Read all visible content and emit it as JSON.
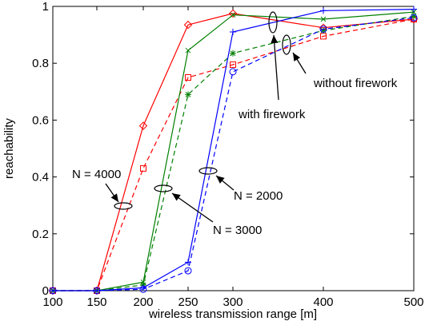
{
  "chart_data": {
    "type": "line",
    "xlabel": "wireless transmission range [m]",
    "ylabel": "reachability",
    "xlim": [
      100,
      500
    ],
    "ylim": [
      0,
      1
    ],
    "x_ticks": [
      "100",
      "150",
      "200",
      "250",
      "300",
      "400",
      "500"
    ],
    "y_ticks": [
      "0",
      "0.2",
      "0.4",
      "0.6",
      "0.8",
      "1"
    ],
    "x": [
      100,
      150,
      200,
      250,
      300,
      400,
      500
    ],
    "grid": false,
    "series": [
      {
        "group": "N = 4000",
        "variant": "with firework",
        "color": "#ff0000",
        "dash": "solid",
        "marker": "diamond",
        "values": [
          0.0,
          0.0,
          0.58,
          0.935,
          0.975,
          0.925,
          0.955
        ]
      },
      {
        "group": "N = 4000",
        "variant": "without firework",
        "color": "#ff0000",
        "dash": "dashed",
        "marker": "square",
        "values": [
          0.0,
          0.0,
          0.43,
          0.75,
          0.795,
          0.895,
          0.955
        ]
      },
      {
        "group": "N = 3000",
        "variant": "with firework",
        "color": "#008000",
        "dash": "solid",
        "marker": "x",
        "values": [
          0.0,
          0.0,
          0.03,
          0.845,
          0.97,
          0.955,
          0.98
        ]
      },
      {
        "group": "N = 3000",
        "variant": "without firework",
        "color": "#008000",
        "dash": "dashed",
        "marker": "star",
        "values": [
          0.0,
          0.0,
          0.02,
          0.69,
          0.835,
          0.915,
          0.965
        ]
      },
      {
        "group": "N = 2000",
        "variant": "with firework",
        "color": "#0000ff",
        "dash": "solid",
        "marker": "plus",
        "values": [
          0.0,
          0.0,
          0.01,
          0.1,
          0.91,
          0.985,
          0.99
        ]
      },
      {
        "group": "N = 2000",
        "variant": "without firework",
        "color": "#0000ff",
        "dash": "dashed",
        "marker": "circle",
        "values": [
          0.0,
          0.0,
          0.005,
          0.07,
          0.77,
          0.92,
          0.96
        ]
      }
    ],
    "annotations": [
      "N = 4000",
      "N = 3000",
      "N = 2000",
      "with firework",
      "without firework"
    ]
  }
}
